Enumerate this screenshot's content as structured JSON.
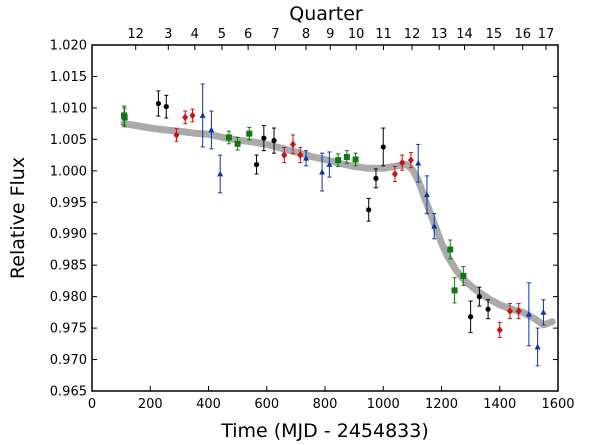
{
  "chart_data": {
    "type": "scatter",
    "xlabel": "Time (MJD - 2454833)",
    "ylabel": "Relative Flux",
    "top_axis_label": "Quarter",
    "xlim": [
      0,
      1600
    ],
    "ylim": [
      0.965,
      1.02
    ],
    "x_ticks": [
      0,
      200,
      400,
      600,
      800,
      1000,
      1200,
      1400,
      1600
    ],
    "x_tick_labels": [
      "0",
      "200",
      "400",
      "600",
      "800",
      "1000",
      "1200",
      "1400",
      "1600"
    ],
    "y_ticks": [
      0.965,
      0.97,
      0.975,
      0.98,
      0.985,
      0.99,
      0.995,
      1.0,
      1.005,
      1.01,
      1.015,
      1.02
    ],
    "y_tick_labels": [
      "0.965",
      "0.970",
      "0.975",
      "0.980",
      "0.985",
      "0.990",
      "0.995",
      "1.000",
      "1.005",
      "1.010",
      "1.015",
      "1.020"
    ],
    "quarters": [
      {
        "label": "12",
        "x": 150
      },
      {
        "label": "3",
        "x": 262
      },
      {
        "label": "4",
        "x": 353
      },
      {
        "label": "5",
        "x": 446
      },
      {
        "label": "6",
        "x": 536
      },
      {
        "label": "7",
        "x": 630
      },
      {
        "label": "8",
        "x": 735
      },
      {
        "label": "9",
        "x": 818
      },
      {
        "label": "10",
        "x": 907
      },
      {
        "label": "11",
        "x": 1001
      },
      {
        "label": "12",
        "x": 1099
      },
      {
        "label": "13",
        "x": 1192
      },
      {
        "label": "14",
        "x": 1279
      },
      {
        "label": "15",
        "x": 1380
      },
      {
        "label": "16",
        "x": 1479
      },
      {
        "label": "17",
        "x": 1559
      }
    ],
    "light_curve": {
      "color": "#aaaaaa",
      "x": [
        110,
        150,
        200,
        250,
        300,
        350,
        400,
        450,
        500,
        550,
        600,
        650,
        700,
        750,
        800,
        850,
        900,
        950,
        1000,
        1050,
        1080,
        1100,
        1120,
        1140,
        1160,
        1180,
        1200,
        1220,
        1250,
        1280,
        1320,
        1360,
        1400,
        1440,
        1480,
        1520,
        1550,
        1580
      ],
      "y": [
        1.0075,
        1.0072,
        1.0068,
        1.0065,
        1.0063,
        1.006,
        1.0058,
        1.0053,
        1.0049,
        1.0046,
        1.0042,
        1.0036,
        1.003,
        1.0023,
        1.0018,
        1.0012,
        1.0007,
        1.0004,
        1.0004,
        1.0008,
        1.001,
        1.0002,
        0.9985,
        0.996,
        0.9935,
        0.991,
        0.9885,
        0.9865,
        0.9842,
        0.9825,
        0.981,
        0.9797,
        0.9787,
        0.978,
        0.9775,
        0.9765,
        0.9755,
        0.976
      ]
    },
    "series": [
      {
        "marker": "square",
        "color": "#117711",
        "points": [
          {
            "x": 110,
            "y": 1.0088,
            "err": 0.0015
          },
          {
            "x": 112,
            "y": 1.0085,
            "err": 0.0015
          },
          {
            "x": 470,
            "y": 1.0053,
            "err": 0.001
          },
          {
            "x": 500,
            "y": 1.0043,
            "err": 0.001
          },
          {
            "x": 540,
            "y": 1.0059,
            "err": 0.001
          },
          {
            "x": 845,
            "y": 1.0017,
            "err": 0.001
          },
          {
            "x": 875,
            "y": 1.0022,
            "err": 0.001
          },
          {
            "x": 905,
            "y": 1.0018,
            "err": 0.001
          },
          {
            "x": 1230,
            "y": 0.9875,
            "err": 0.0015
          },
          {
            "x": 1245,
            "y": 0.981,
            "err": 0.002
          },
          {
            "x": 1275,
            "y": 0.9833,
            "err": 0.0015
          }
        ]
      },
      {
        "marker": "circle",
        "color": "#000000",
        "points": [
          {
            "x": 228,
            "y": 1.0107,
            "err": 0.002
          },
          {
            "x": 255,
            "y": 1.0102,
            "err": 0.0018
          },
          {
            "x": 565,
            "y": 1.001,
            "err": 0.0015
          },
          {
            "x": 590,
            "y": 1.0052,
            "err": 0.002
          },
          {
            "x": 625,
            "y": 1.0048,
            "err": 0.002
          },
          {
            "x": 950,
            "y": 0.9938,
            "err": 0.0018
          },
          {
            "x": 975,
            "y": 0.9988,
            "err": 0.0015
          },
          {
            "x": 1000,
            "y": 1.0038,
            "err": 0.003
          },
          {
            "x": 1300,
            "y": 0.9768,
            "err": 0.0025
          },
          {
            "x": 1330,
            "y": 0.98,
            "err": 0.0015
          },
          {
            "x": 1360,
            "y": 0.978,
            "err": 0.0015
          }
        ]
      },
      {
        "marker": "diamond",
        "color": "#cc1111",
        "points": [
          {
            "x": 290,
            "y": 1.0057,
            "err": 0.001
          },
          {
            "x": 320,
            "y": 1.0085,
            "err": 0.001
          },
          {
            "x": 345,
            "y": 1.0088,
            "err": 0.001
          },
          {
            "x": 660,
            "y": 1.0025,
            "err": 0.0012
          },
          {
            "x": 690,
            "y": 1.0042,
            "err": 0.0015
          },
          {
            "x": 715,
            "y": 1.0025,
            "err": 0.0012
          },
          {
            "x": 1040,
            "y": 0.9995,
            "err": 0.0012
          },
          {
            "x": 1065,
            "y": 1.0013,
            "err": 0.0012
          },
          {
            "x": 1095,
            "y": 1.0017,
            "err": 0.0012
          },
          {
            "x": 1400,
            "y": 0.9747,
            "err": 0.0012
          },
          {
            "x": 1435,
            "y": 0.9777,
            "err": 0.0012
          },
          {
            "x": 1465,
            "y": 0.9777,
            "err": 0.0012
          }
        ]
      },
      {
        "marker": "triangle",
        "color": "#1133aa",
        "points": [
          {
            "x": 380,
            "y": 1.0088,
            "err": 0.005
          },
          {
            "x": 410,
            "y": 1.0065,
            "err": 0.003
          },
          {
            "x": 440,
            "y": 0.9995,
            "err": 0.003
          },
          {
            "x": 735,
            "y": 1.002,
            "err": 0.0012
          },
          {
            "x": 790,
            "y": 0.9998,
            "err": 0.003
          },
          {
            "x": 815,
            "y": 1.001,
            "err": 0.002
          },
          {
            "x": 1120,
            "y": 1.0012,
            "err": 0.003
          },
          {
            "x": 1150,
            "y": 0.9962,
            "err": 0.003
          },
          {
            "x": 1175,
            "y": 0.9912,
            "err": 0.002
          },
          {
            "x": 1500,
            "y": 0.9772,
            "err": 0.005
          },
          {
            "x": 1530,
            "y": 0.972,
            "err": 0.003
          },
          {
            "x": 1550,
            "y": 0.9775,
            "err": 0.002
          }
        ]
      }
    ]
  }
}
